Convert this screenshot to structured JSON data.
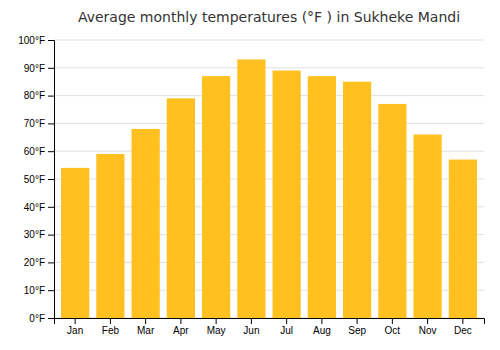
{
  "chart_data": {
    "type": "bar",
    "title": "Average monthly temperatures (°F ) in Sukheke Mandi",
    "categories": [
      "Jan",
      "Feb",
      "Mar",
      "Apr",
      "May",
      "Jun",
      "Jul",
      "Aug",
      "Sep",
      "Oct",
      "Nov",
      "Dec"
    ],
    "values": [
      54,
      59,
      68,
      79,
      87,
      93,
      89,
      87,
      85,
      77,
      66,
      57
    ],
    "color": "#FFC020",
    "ylim": [
      0,
      100
    ],
    "yticks": [
      {
        "value": 0,
        "label": "0°F"
      },
      {
        "value": 10,
        "label": "10°F"
      },
      {
        "value": 20,
        "label": "20°F"
      },
      {
        "value": 30,
        "label": "30°F"
      },
      {
        "value": 40,
        "label": "40°F"
      },
      {
        "value": 50,
        "label": "50°F"
      },
      {
        "value": 60,
        "label": "60°F"
      },
      {
        "value": 70,
        "label": "70°F"
      },
      {
        "value": 80,
        "label": "80°F"
      },
      {
        "value": 90,
        "label": "90°F"
      },
      {
        "value": 100,
        "label": "100°F"
      }
    ],
    "grid": true
  }
}
